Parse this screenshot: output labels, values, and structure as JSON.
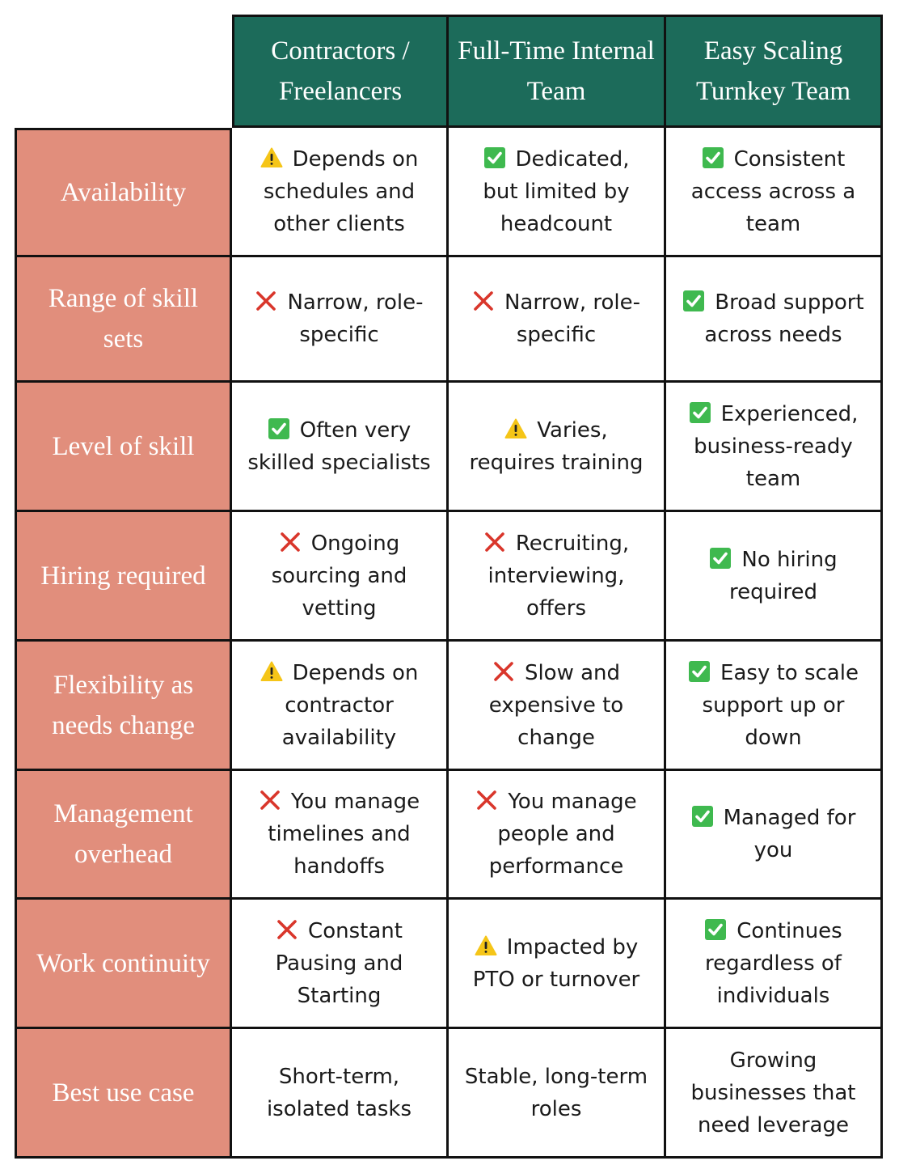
{
  "columns": [
    "Contractors / Freelancers",
    "Full-Time Internal Team",
    "Easy Scaling Turnkey Team"
  ],
  "rows": [
    {
      "label": "Availability",
      "cells": [
        {
          "icon": "warning-icon",
          "text": "Depends on schedules and other clients"
        },
        {
          "icon": "check-icon",
          "text": "Dedicated, but limited by headcount"
        },
        {
          "icon": "check-icon",
          "text": "Consistent access across a team"
        }
      ]
    },
    {
      "label": "Range of skill sets",
      "cells": [
        {
          "icon": "cross-icon",
          "text": "Narrow, role-specific"
        },
        {
          "icon": "cross-icon",
          "text": "Narrow, role-specific"
        },
        {
          "icon": "check-icon",
          "text": "Broad support across needs"
        }
      ]
    },
    {
      "label": "Level of skill",
      "cells": [
        {
          "icon": "check-icon",
          "text": "Often very skilled specialists"
        },
        {
          "icon": "warning-icon",
          "text": "Varies, requires training"
        },
        {
          "icon": "check-icon",
          "text": "Experienced, business-ready team"
        }
      ]
    },
    {
      "label": "Hiring required",
      "cells": [
        {
          "icon": "cross-icon",
          "text": "Ongoing sourcing and vetting"
        },
        {
          "icon": "cross-icon",
          "text": "Recruiting, interviewing, offers"
        },
        {
          "icon": "check-icon",
          "text": "No hiring required"
        }
      ]
    },
    {
      "label": "Flexibility as needs change",
      "cells": [
        {
          "icon": "warning-icon",
          "text": "Depends on contractor availability"
        },
        {
          "icon": "cross-icon",
          "text": "Slow and expensive to change"
        },
        {
          "icon": "check-icon",
          "text": "Easy to scale support up or down"
        }
      ]
    },
    {
      "label": "Management overhead",
      "cells": [
        {
          "icon": "cross-icon",
          "text": "You manage timelines and handoffs"
        },
        {
          "icon": "cross-icon",
          "text": "You manage people and performance"
        },
        {
          "icon": "check-icon",
          "text": "Managed for you"
        }
      ]
    },
    {
      "label": "Work continuity",
      "cells": [
        {
          "icon": "cross-icon",
          "text": "Constant Pausing and Starting"
        },
        {
          "icon": "warning-icon",
          "text": "Impacted by PTO or turnover"
        },
        {
          "icon": "check-icon",
          "text": "Continues regardless of individuals"
        }
      ]
    },
    {
      "label": "Best use case",
      "cells": [
        {
          "icon": "",
          "text": "Short-term, isolated tasks"
        },
        {
          "icon": "",
          "text": "Stable, long-term roles"
        },
        {
          "icon": "",
          "text": "Growing businesses that need leverage"
        }
      ]
    }
  ],
  "colors": {
    "header_bg": "#1c6b5a",
    "row_label_bg": "#e18e7c",
    "check": "#3fb94f",
    "cross": "#d9362b",
    "warning": "#f5c518",
    "border": "#111111"
  }
}
